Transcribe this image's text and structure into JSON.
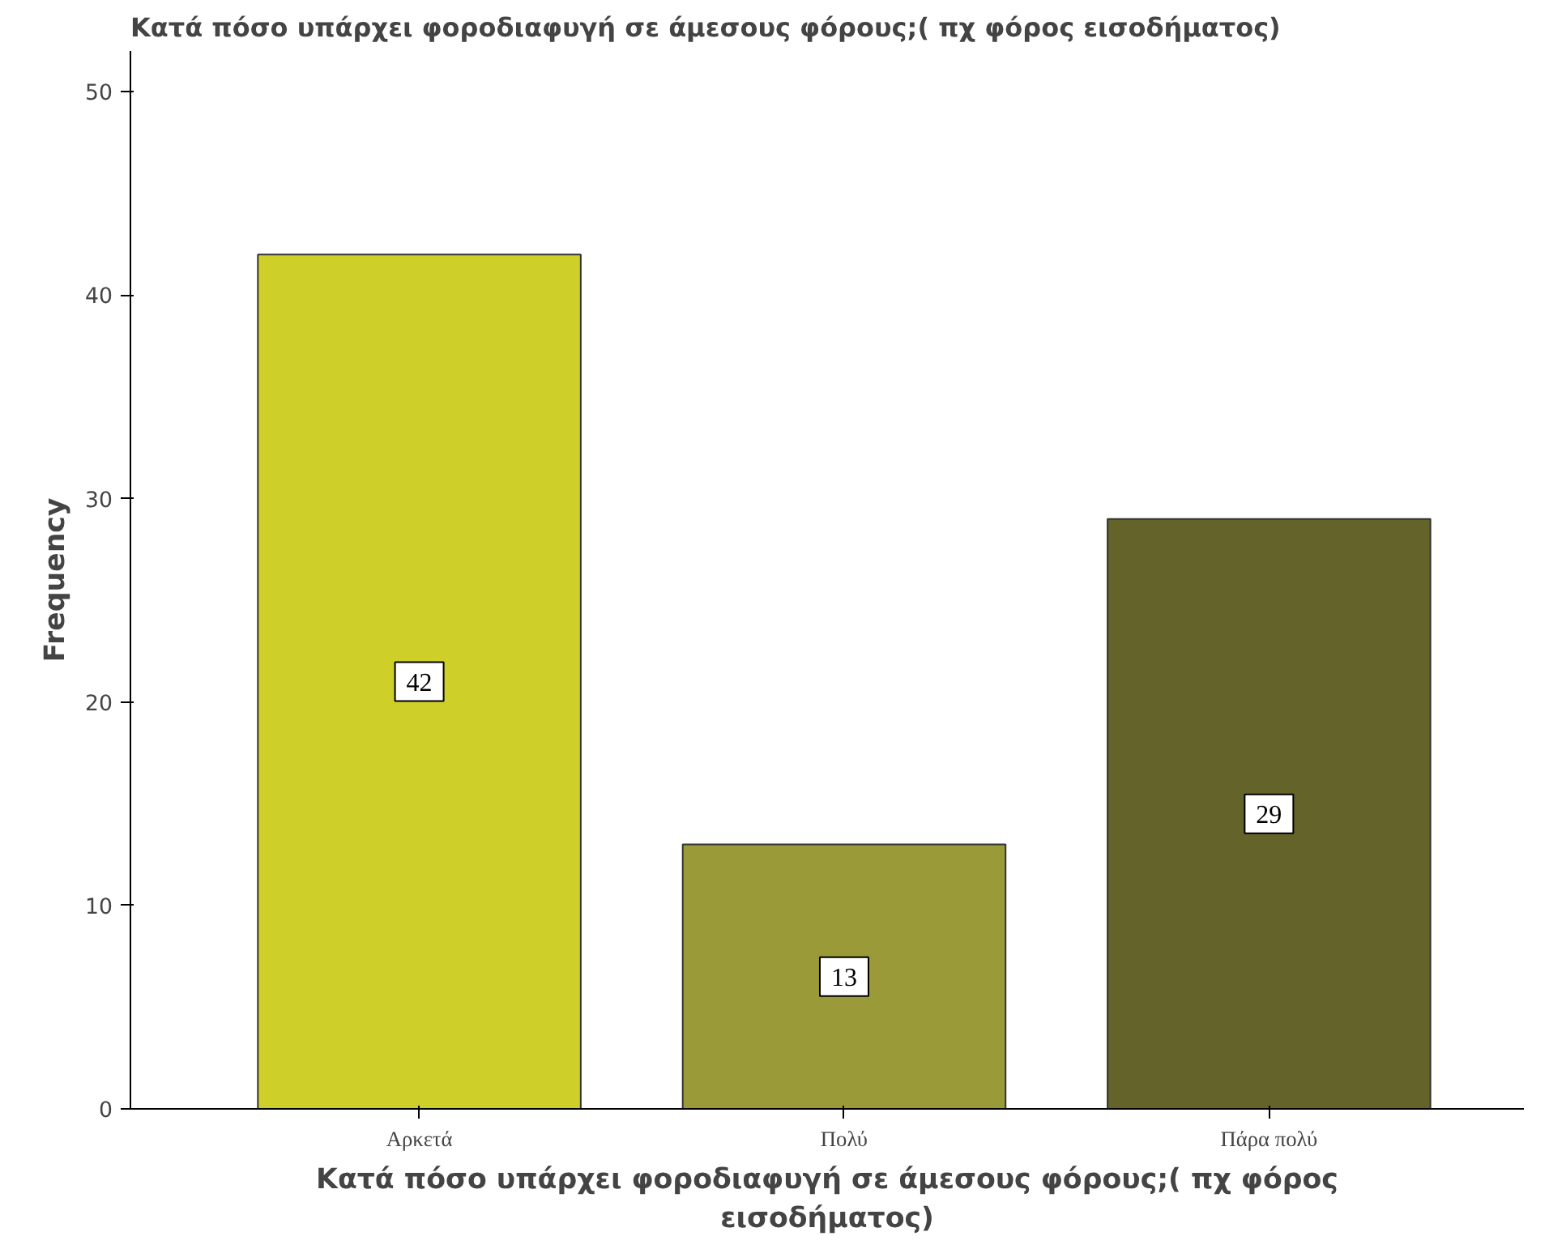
{
  "chart_data": {
    "type": "bar",
    "title": "Κατά πόσο υπάρχει φοροδιαφυγή σε άμεσους φόρους;( πχ φόρος εισοδήματος)",
    "xlabel": "Κατά πόσο υπάρχει φοροδιαφυγή σε άμεσους φόρους;( πχ φόρος εισοδήματος)",
    "ylabel": "Frequency",
    "categories": [
      "Αρκετά",
      "Πολύ",
      "Πάρα πολύ"
    ],
    "values": [
      42,
      13,
      29
    ],
    "colors": [
      "#cfcf2a",
      "#9a9a38",
      "#63632a"
    ],
    "ylim": [
      0,
      52
    ],
    "yticks": [
      0,
      10,
      20,
      30,
      40,
      50
    ],
    "grid": false,
    "data_labels": true
  }
}
